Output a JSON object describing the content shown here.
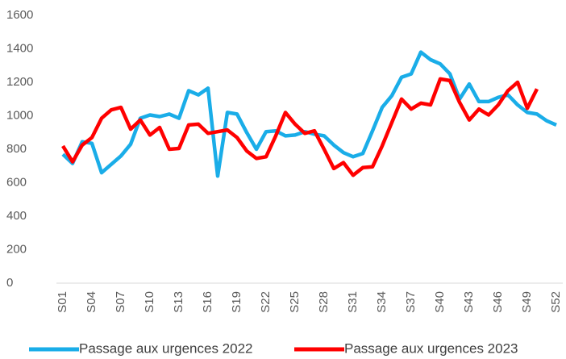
{
  "chart_data": {
    "type": "line",
    "categories": [
      "S01",
      null,
      null,
      "S04",
      null,
      null,
      "S07",
      null,
      null,
      "S10",
      null,
      null,
      "S13",
      null,
      null,
      "S16",
      null,
      null,
      "S19",
      null,
      null,
      "S22",
      null,
      null,
      "S25",
      null,
      null,
      "S28",
      null,
      null,
      "S31",
      null,
      null,
      "S34",
      null,
      null,
      "S37",
      null,
      null,
      "S40",
      null,
      null,
      "S43",
      null,
      null,
      "S46",
      null,
      null,
      "S49",
      null,
      null,
      "S52"
    ],
    "series": [
      {
        "name": "Passage aux urgences 2022",
        "color": "#1aade8",
        "values": [
          770,
          715,
          845,
          835,
          660,
          710,
          760,
          830,
          985,
          1005,
          995,
          1010,
          985,
          1150,
          1125,
          1165,
          640,
          1020,
          1010,
          900,
          800,
          905,
          910,
          880,
          885,
          905,
          890,
          880,
          825,
          780,
          755,
          775,
          910,
          1050,
          1120,
          1230,
          1250,
          1380,
          1335,
          1310,
          1250,
          1100,
          1190,
          1085,
          1085,
          1110,
          1125,
          1065,
          1020,
          1010,
          970,
          945
        ]
      },
      {
        "name": "Passage aux urgences 2023",
        "color": "#ff0000",
        "values": [
          820,
          725,
          825,
          870,
          985,
          1035,
          1050,
          920,
          975,
          885,
          930,
          800,
          805,
          945,
          950,
          895,
          905,
          915,
          870,
          790,
          745,
          755,
          880,
          1020,
          950,
          895,
          910,
          800,
          685,
          720,
          645,
          690,
          695,
          820,
          960,
          1100,
          1040,
          1075,
          1065,
          1220,
          1210,
          1080,
          975,
          1040,
          1005,
          1065,
          1150,
          1200,
          1045,
          1160,
          null,
          null
        ]
      }
    ],
    "ylim": [
      0,
      1600
    ],
    "yticks": [
      0,
      200,
      400,
      600,
      800,
      1000,
      1200,
      1400,
      1600
    ],
    "grid": false,
    "legend": "bottom"
  }
}
